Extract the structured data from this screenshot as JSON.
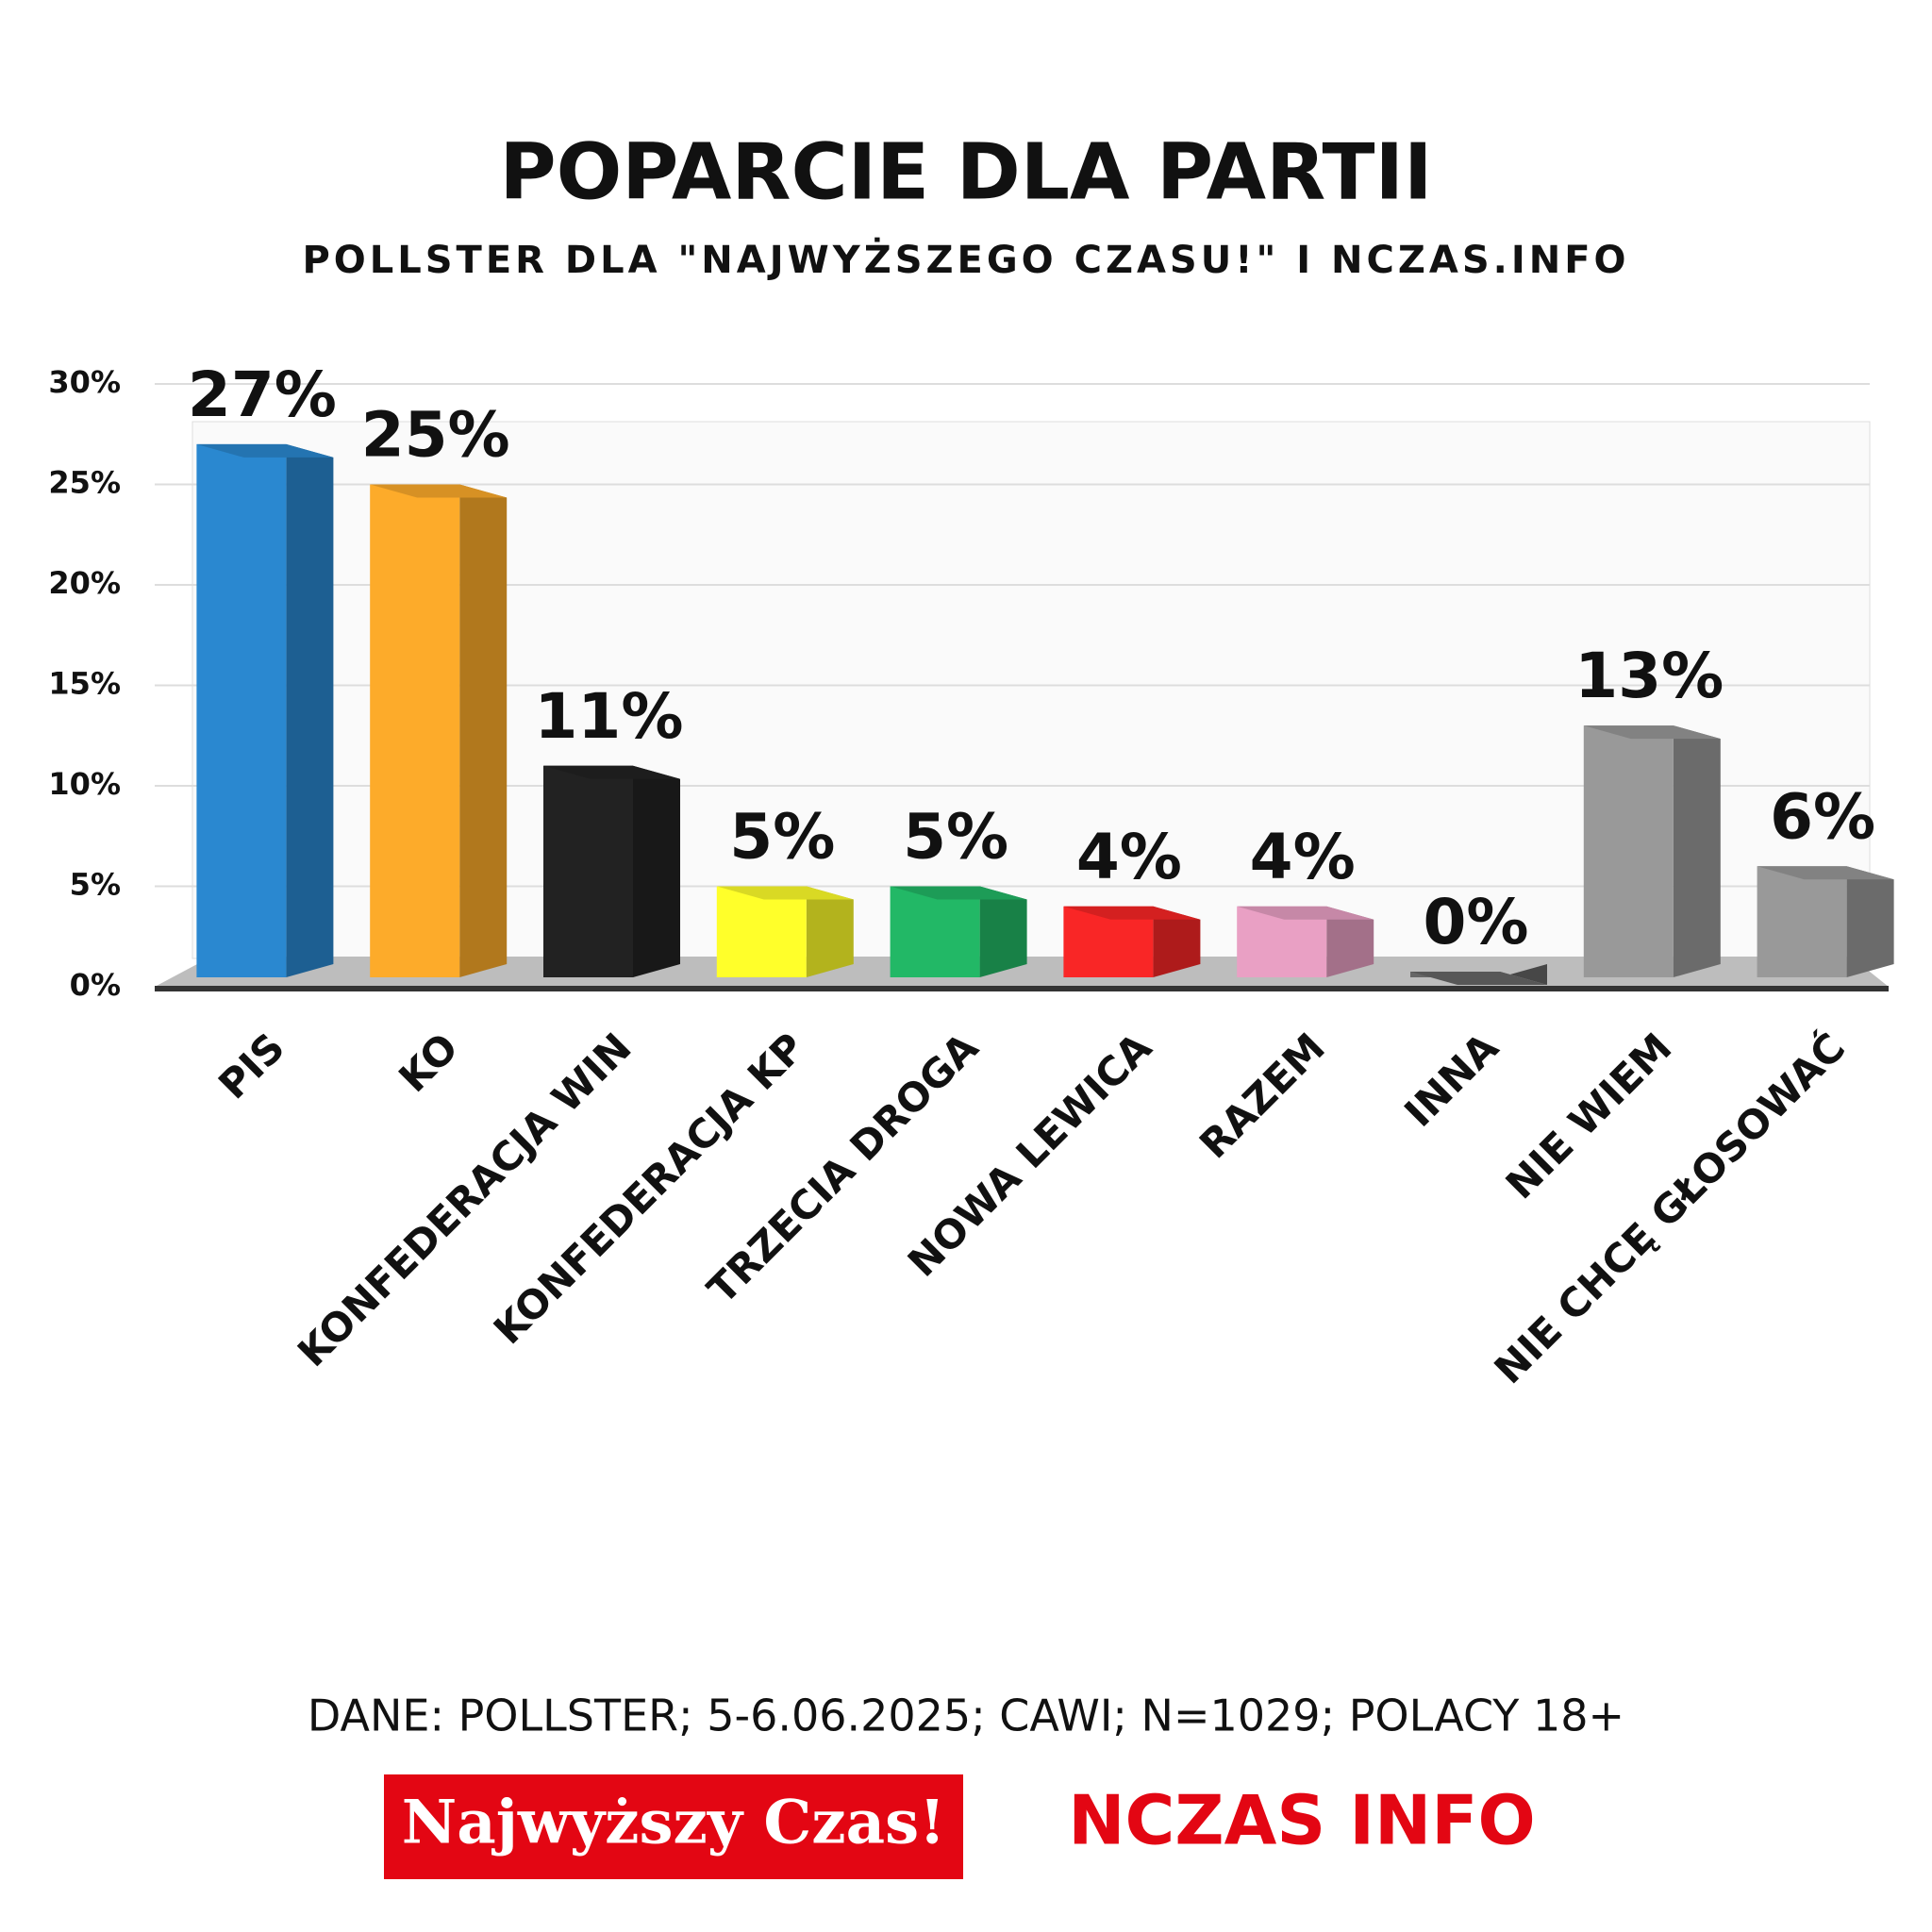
{
  "chart_data": {
    "type": "bar",
    "title": "POPARCIE DLA PARTII",
    "subtitle": "POLLSTER DLA \"NAJWYŻSZEGO CZASU!\" I NCZAS.INFO",
    "categories": [
      "PIS",
      "KO",
      "KONFEDERACJA WIN",
      "KONFEDERACJA KP",
      "TRZECIA DROGA",
      "NOWA LEWICA",
      "RAZEM",
      "INNA",
      "NIE WIEM",
      "NIE CHCĘ GŁOSOWAĆ"
    ],
    "values": [
      27,
      25,
      11,
      5,
      5,
      4,
      4,
      0,
      13,
      6
    ],
    "value_labels": [
      "27%",
      "25%",
      "11%",
      "5%",
      "5%",
      "4%",
      "4%",
      "0%",
      "13%",
      "6%"
    ],
    "colors": [
      "#2a88d0",
      "#fdab2a",
      "#222222",
      "#ffff2a",
      "#22b866",
      "#f92626",
      "#e9a0c4",
      "#666666",
      "#999999",
      "#999999"
    ],
    "ylim": [
      0,
      30
    ],
    "yticks": [
      {
        "value": 0,
        "label": "0%"
      },
      {
        "value": 5,
        "label": "5%"
      },
      {
        "value": 10,
        "label": "10%"
      },
      {
        "value": 15,
        "label": "15%"
      },
      {
        "value": 20,
        "label": "20%"
      },
      {
        "value": 25,
        "label": "25%"
      },
      {
        "value": 30,
        "label": "30%"
      }
    ],
    "grid": true,
    "source": "DANE: POLLSTER; 5-6.06.2025; CAWI; N=1029; POLACY 18+",
    "logos": [
      "Najwyższy Czas!",
      "NCZAS INFO"
    ]
  }
}
